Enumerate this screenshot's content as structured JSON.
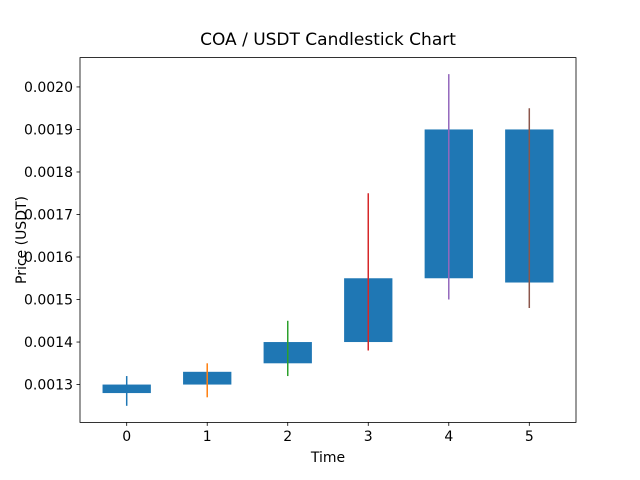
{
  "chart_data": {
    "type": "candlestick",
    "title": "COA / USDT Candlestick Chart",
    "xlabel": "Time",
    "ylabel": "Price (USDT)",
    "x": [
      0,
      1,
      2,
      3,
      4,
      5
    ],
    "candles": [
      {
        "time": 0,
        "open": 0.00128,
        "high": 0.00132,
        "low": 0.00125,
        "close": 0.0013
      },
      {
        "time": 1,
        "open": 0.0013,
        "high": 0.00135,
        "low": 0.00127,
        "close": 0.00133
      },
      {
        "time": 2,
        "open": 0.00135,
        "high": 0.00145,
        "low": 0.00132,
        "close": 0.0014
      },
      {
        "time": 3,
        "open": 0.0014,
        "high": 0.00175,
        "low": 0.00138,
        "close": 0.00155
      },
      {
        "time": 4,
        "open": 0.00155,
        "high": 0.00203,
        "low": 0.0015,
        "close": 0.0019
      },
      {
        "time": 5,
        "open": 0.00154,
        "high": 0.00195,
        "low": 0.00148,
        "close": 0.0019
      }
    ],
    "body_color": "#1f77b4",
    "wick_colors": [
      "#1f77b4",
      "#ff7f0e",
      "#2ca02c",
      "#d62728",
      "#9467bd",
      "#8c564b"
    ],
    "bar_width": 0.6,
    "xlim": [
      -0.58,
      5.58
    ],
    "ylim": [
      0.001211,
      0.002069
    ],
    "xticks": [
      0,
      1,
      2,
      3,
      4,
      5
    ],
    "xtick_labels": [
      "0",
      "1",
      "2",
      "3",
      "4",
      "5"
    ],
    "yticks": [
      0.0013,
      0.0014,
      0.0015,
      0.0016,
      0.0017,
      0.0018,
      0.0019,
      0.002
    ],
    "ytick_labels": [
      "0.0013",
      "0.0014",
      "0.0015",
      "0.0016",
      "0.0017",
      "0.0018",
      "0.0019",
      "0.0020"
    ],
    "grid": false,
    "legend": null
  }
}
